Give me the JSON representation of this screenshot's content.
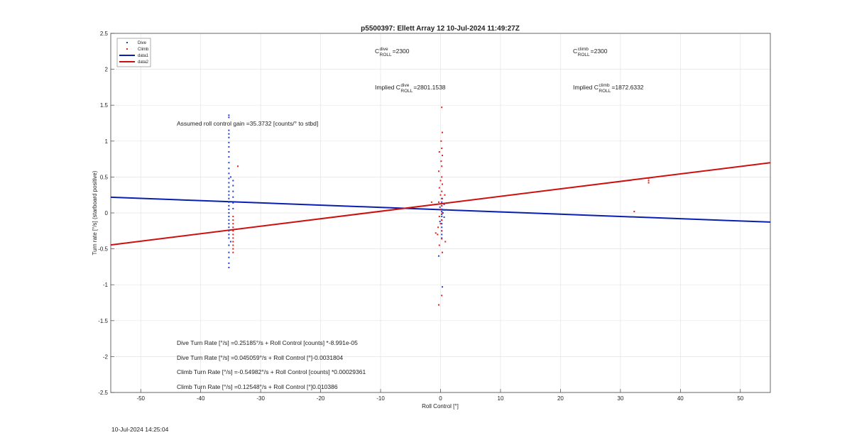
{
  "chart_data": {
    "type": "scatter",
    "title": "p5500397: Ellett Array 12 10-Jul-2024 11:49:27Z",
    "xlabel": "Roll Control [°]",
    "ylabel": "Turn rate [°/s] (starboard positive)",
    "xlim": [
      -55,
      55
    ],
    "ylim": [
      -2.5,
      2.5
    ],
    "xticks": [
      -50,
      -40,
      -30,
      -20,
      -10,
      0,
      10,
      20,
      30,
      40,
      50
    ],
    "yticks": [
      -2.5,
      -2,
      -1.5,
      -1,
      -0.5,
      0,
      0.5,
      1,
      1.5,
      2,
      2.5
    ],
    "grid": true,
    "legend_position": "top-left",
    "series": [
      {
        "name": "Dive",
        "kind": "points",
        "color": "#1f3fd0",
        "points": [
          [
            -35.3,
            1.36
          ],
          [
            -35.3,
            1.33
          ],
          [
            -35.3,
            1.15
          ],
          [
            -35.3,
            1.1
          ],
          [
            -35.3,
            1.05
          ],
          [
            -35.3,
            0.98
          ],
          [
            -35.3,
            0.92
          ],
          [
            -35.3,
            0.85
          ],
          [
            -35.3,
            0.78
          ],
          [
            -35.3,
            0.7
          ],
          [
            -35.3,
            0.62
          ],
          [
            -35.3,
            0.55
          ],
          [
            -35.3,
            0.48
          ],
          [
            -35.3,
            0.42
          ],
          [
            -35.3,
            0.36
          ],
          [
            -35.3,
            0.3
          ],
          [
            -35.3,
            0.25
          ],
          [
            -35.3,
            0.2
          ],
          [
            -35.3,
            0.15
          ],
          [
            -35.3,
            0.1
          ],
          [
            -35.3,
            0.05
          ],
          [
            -35.3,
            0.0
          ],
          [
            -35.3,
            -0.05
          ],
          [
            -35.3,
            -0.1
          ],
          [
            -35.3,
            -0.15
          ],
          [
            -35.3,
            -0.2
          ],
          [
            -35.3,
            -0.25
          ],
          [
            -35.3,
            -0.3
          ],
          [
            -35.3,
            -0.35
          ],
          [
            -35.3,
            -0.45
          ],
          [
            -35.3,
            -0.55
          ],
          [
            -35.3,
            -0.62
          ],
          [
            -35.3,
            -0.7
          ],
          [
            -35.3,
            -0.76
          ],
          [
            -34.6,
            0.45
          ],
          [
            -34.6,
            0.38
          ],
          [
            -34.6,
            0.3
          ],
          [
            -34.6,
            0.22
          ],
          [
            -34.6,
            0.14
          ],
          [
            -34.6,
            0.06
          ],
          [
            -35.0,
            0.5
          ],
          [
            -35.0,
            -0.4
          ],
          [
            0.2,
            0.2
          ],
          [
            0.2,
            0.15
          ],
          [
            0.2,
            0.1
          ],
          [
            0.2,
            0.05
          ],
          [
            0.2,
            0.02
          ],
          [
            0.2,
            -0.02
          ],
          [
            0.2,
            -0.05
          ],
          [
            0.2,
            -0.1
          ],
          [
            0.2,
            -0.15
          ],
          [
            0.2,
            -0.2
          ],
          [
            0.2,
            -0.25
          ],
          [
            0.2,
            -0.3
          ],
          [
            0.2,
            -0.35
          ],
          [
            -0.3,
            -0.6
          ],
          [
            0.3,
            -1.03
          ],
          [
            0.6,
            0.12
          ],
          [
            0.6,
            0.04
          ],
          [
            0.6,
            -0.06
          ],
          [
            0.4,
            0.0
          ],
          [
            -0.1,
            0.08
          ],
          [
            -0.1,
            -0.12
          ]
        ]
      },
      {
        "name": "Climb",
        "kind": "points",
        "color": "#e02020",
        "points": [
          [
            -34.6,
            -0.1
          ],
          [
            -34.6,
            -0.15
          ],
          [
            -34.6,
            -0.2
          ],
          [
            -34.6,
            -0.25
          ],
          [
            -34.6,
            -0.3
          ],
          [
            -34.6,
            -0.35
          ],
          [
            -34.6,
            -0.4
          ],
          [
            -34.6,
            -0.45
          ],
          [
            -34.6,
            -0.5
          ],
          [
            -34.6,
            -0.55
          ],
          [
            -33.8,
            0.65
          ],
          [
            -34.6,
            -0.05
          ],
          [
            0.2,
            1.47
          ],
          [
            0.3,
            1.12
          ],
          [
            0.1,
            1.0
          ],
          [
            0.2,
            0.9
          ],
          [
            -0.2,
            0.85
          ],
          [
            0.3,
            0.8
          ],
          [
            0.1,
            0.72
          ],
          [
            0.2,
            0.65
          ],
          [
            -0.3,
            0.58
          ],
          [
            0.2,
            0.5
          ],
          [
            0.0,
            0.45
          ],
          [
            0.3,
            0.4
          ],
          [
            -0.2,
            0.35
          ],
          [
            0.2,
            0.3
          ],
          [
            0.0,
            0.25
          ],
          [
            0.3,
            0.2
          ],
          [
            -0.3,
            0.15
          ],
          [
            0.2,
            0.1
          ],
          [
            0.0,
            0.05
          ],
          [
            0.3,
            0.0
          ],
          [
            -0.2,
            -0.05
          ],
          [
            0.2,
            -0.1
          ],
          [
            0.0,
            -0.15
          ],
          [
            -0.4,
            -0.2
          ],
          [
            0.2,
            -0.25
          ],
          [
            -0.5,
            -0.3
          ],
          [
            0.2,
            -0.36
          ],
          [
            -0.2,
            -0.45
          ],
          [
            0.3,
            -0.55
          ],
          [
            0.2,
            -1.15
          ],
          [
            -0.3,
            -1.28
          ],
          [
            -1.5,
            0.15
          ],
          [
            -0.8,
            -0.28
          ],
          [
            0.7,
            0.25
          ],
          [
            0.8,
            -0.4
          ],
          [
            34.7,
            0.48
          ],
          [
            34.7,
            0.45
          ],
          [
            34.7,
            0.42
          ],
          [
            32.3,
            0.02
          ]
        ]
      },
      {
        "name": "data1",
        "kind": "line",
        "color": "#0a1fb0",
        "x": [
          -55,
          55
        ],
        "y": [
          0.2187,
          -0.1278
        ]
      },
      {
        "name": "data2",
        "kind": "line",
        "color": "#cc1010",
        "x": [
          -55,
          55
        ],
        "y": [
          -0.4454,
          0.6992
        ]
      }
    ],
    "annotations": {
      "c_dive": {
        "main": "C",
        "sup": "dive",
        "sub": "ROLL",
        "rest": "=2300"
      },
      "c_climb": {
        "main": "C",
        "sup": "climb",
        "sub": "ROLL",
        "rest": "=2300"
      },
      "implied_dive": {
        "prefix": "Implied C",
        "sup": "dive",
        "sub": "ROLL",
        "rest": "=2801.1538"
      },
      "implied_climb": {
        "prefix": "Implied C",
        "sup": "climb",
        "sub": "ROLL",
        "rest": "=1872.6332"
      },
      "gain": "Assumed roll control gain =35.3732 [counts/° to stbd]",
      "fit1": "Dive Turn Rate [°/s] =0.25185°/s + Roll Control [counts] *-8.991e-05",
      "fit2": "Dive Turn Rate [°/s] =0.045059°/s + Roll Control [°]-0.0031804",
      "fit3": "Climb Turn Rate [°/s] =-0.54982°/s + Roll Control [counts] *0.00029361",
      "fit4": "Climb Turn Rate [°/s] =0.12548°/s + Roll Control [°]0.010386"
    }
  },
  "footer": {
    "timestamp": "10-Jul-2024 14:25:04"
  }
}
